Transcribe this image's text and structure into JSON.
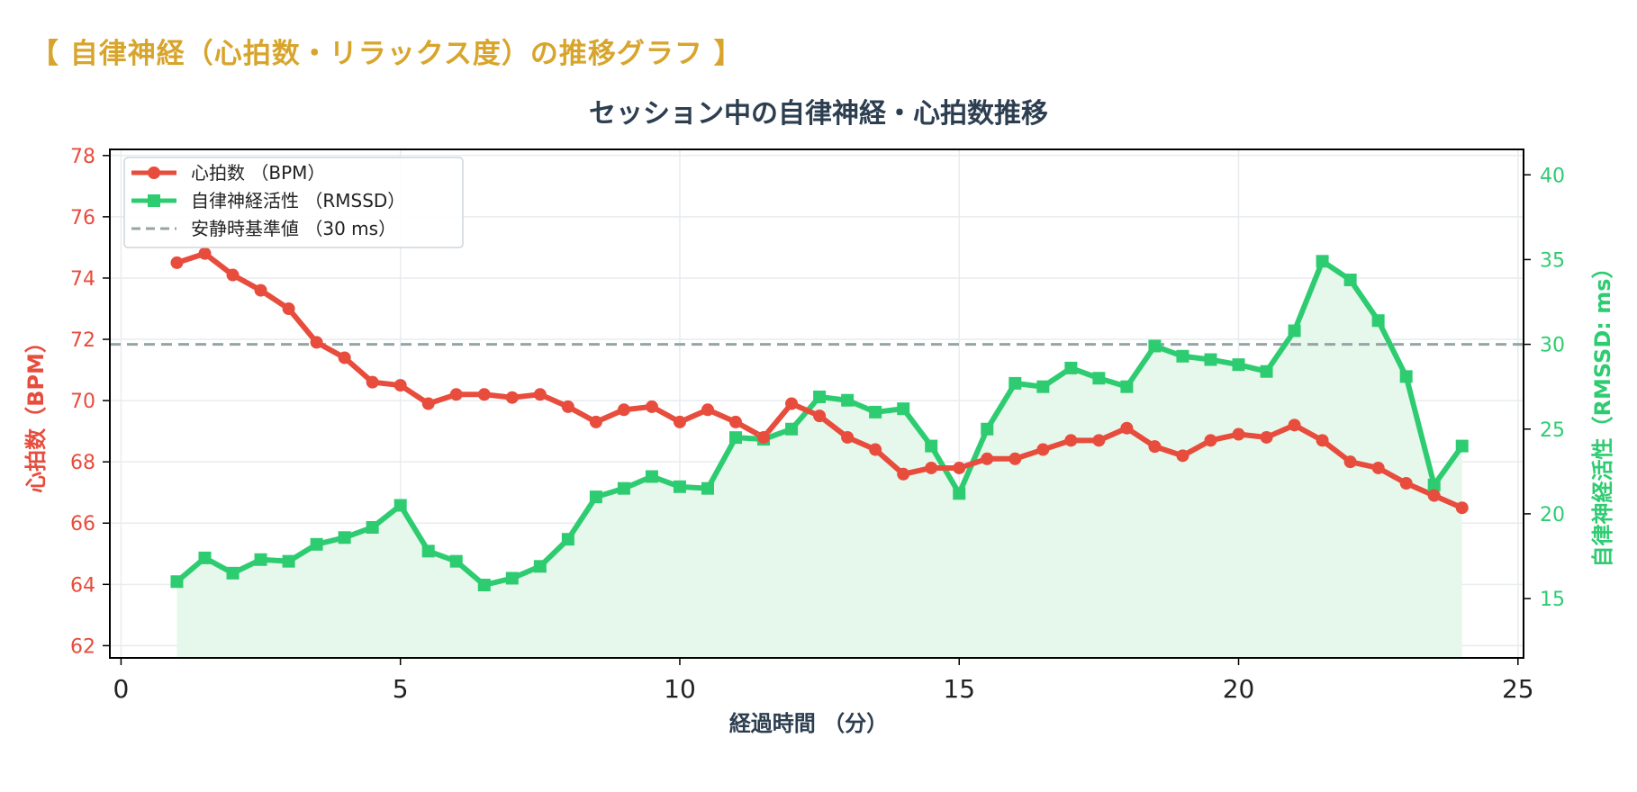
{
  "heading": "【 自律神経（心拍数・リラックス度）の推移グラフ 】",
  "chart_data": {
    "type": "line",
    "title": "セッション中の自律神経・心拍数推移",
    "xlabel": "経過時間 （分）",
    "ylabel_left": "心拍数（BPM）",
    "ylabel_right": "自律神経活性（RMSSD: ms）",
    "xlim": [
      -0.2,
      25.1
    ],
    "ylim_left": [
      61.6,
      78.2
    ],
    "ylim_right": [
      11.5,
      41.5
    ],
    "x_ticks": [
      "0",
      "5",
      "10",
      "15",
      "20",
      "25"
    ],
    "y_left_ticks": [
      "62",
      "64",
      "66",
      "68",
      "70",
      "72",
      "74",
      "76",
      "78"
    ],
    "y_right_ticks": [
      "15",
      "20",
      "25",
      "30",
      "35",
      "40"
    ],
    "grid": true,
    "legend_position": "top-left",
    "x": [
      1,
      1.5,
      2,
      2.5,
      3,
      3.5,
      4,
      4.5,
      5,
      5.5,
      6,
      6.5,
      7,
      7.5,
      8,
      8.5,
      9,
      9.5,
      10,
      10.5,
      11,
      11.5,
      12,
      12.5,
      13,
      13.5,
      14,
      14.5,
      15,
      15.5,
      16,
      16.5,
      17,
      17.5,
      18,
      18.5,
      19,
      19.5,
      20,
      20.5,
      21,
      21.5,
      22,
      22.5,
      23,
      23.5,
      24
    ],
    "series": [
      {
        "name": "心拍数 （BPM）",
        "axis": "left",
        "color": "#e74c3c",
        "marker": "circle",
        "values": [
          74.5,
          74.8,
          74.1,
          73.6,
          73.0,
          71.9,
          71.4,
          70.6,
          70.5,
          69.9,
          70.2,
          70.2,
          70.1,
          70.2,
          69.8,
          69.3,
          69.7,
          69.8,
          69.3,
          69.7,
          69.3,
          68.8,
          69.9,
          69.5,
          68.8,
          68.4,
          67.6,
          67.8,
          67.8,
          68.1,
          68.1,
          68.4,
          68.7,
          68.7,
          69.1,
          68.5,
          68.2,
          68.7,
          68.9,
          68.8,
          69.2,
          68.7,
          68.0,
          67.8,
          67.3,
          66.9,
          66.5
        ]
      },
      {
        "name": "自律神経活性 （RMSSD）",
        "axis": "right",
        "color": "#2ecc71",
        "marker": "square",
        "fill": "#e6f7ec",
        "values": [
          16.0,
          17.4,
          16.5,
          17.3,
          17.2,
          18.2,
          18.6,
          19.2,
          20.5,
          17.8,
          17.2,
          15.8,
          16.2,
          16.9,
          18.5,
          21.0,
          21.5,
          22.2,
          21.6,
          21.5,
          24.5,
          24.4,
          25.0,
          26.9,
          26.7,
          26.0,
          26.2,
          24.0,
          21.2,
          25.0,
          27.7,
          27.5,
          28.6,
          28.0,
          27.5,
          29.9,
          29.3,
          29.1,
          28.8,
          28.4,
          30.8,
          34.9,
          33.8,
          31.4,
          28.1,
          21.7,
          24.0
        ]
      }
    ],
    "reference_line": {
      "name": "安静時基準値 （30 ms）",
      "axis": "right",
      "value": 30,
      "color": "#95a5a6"
    }
  }
}
